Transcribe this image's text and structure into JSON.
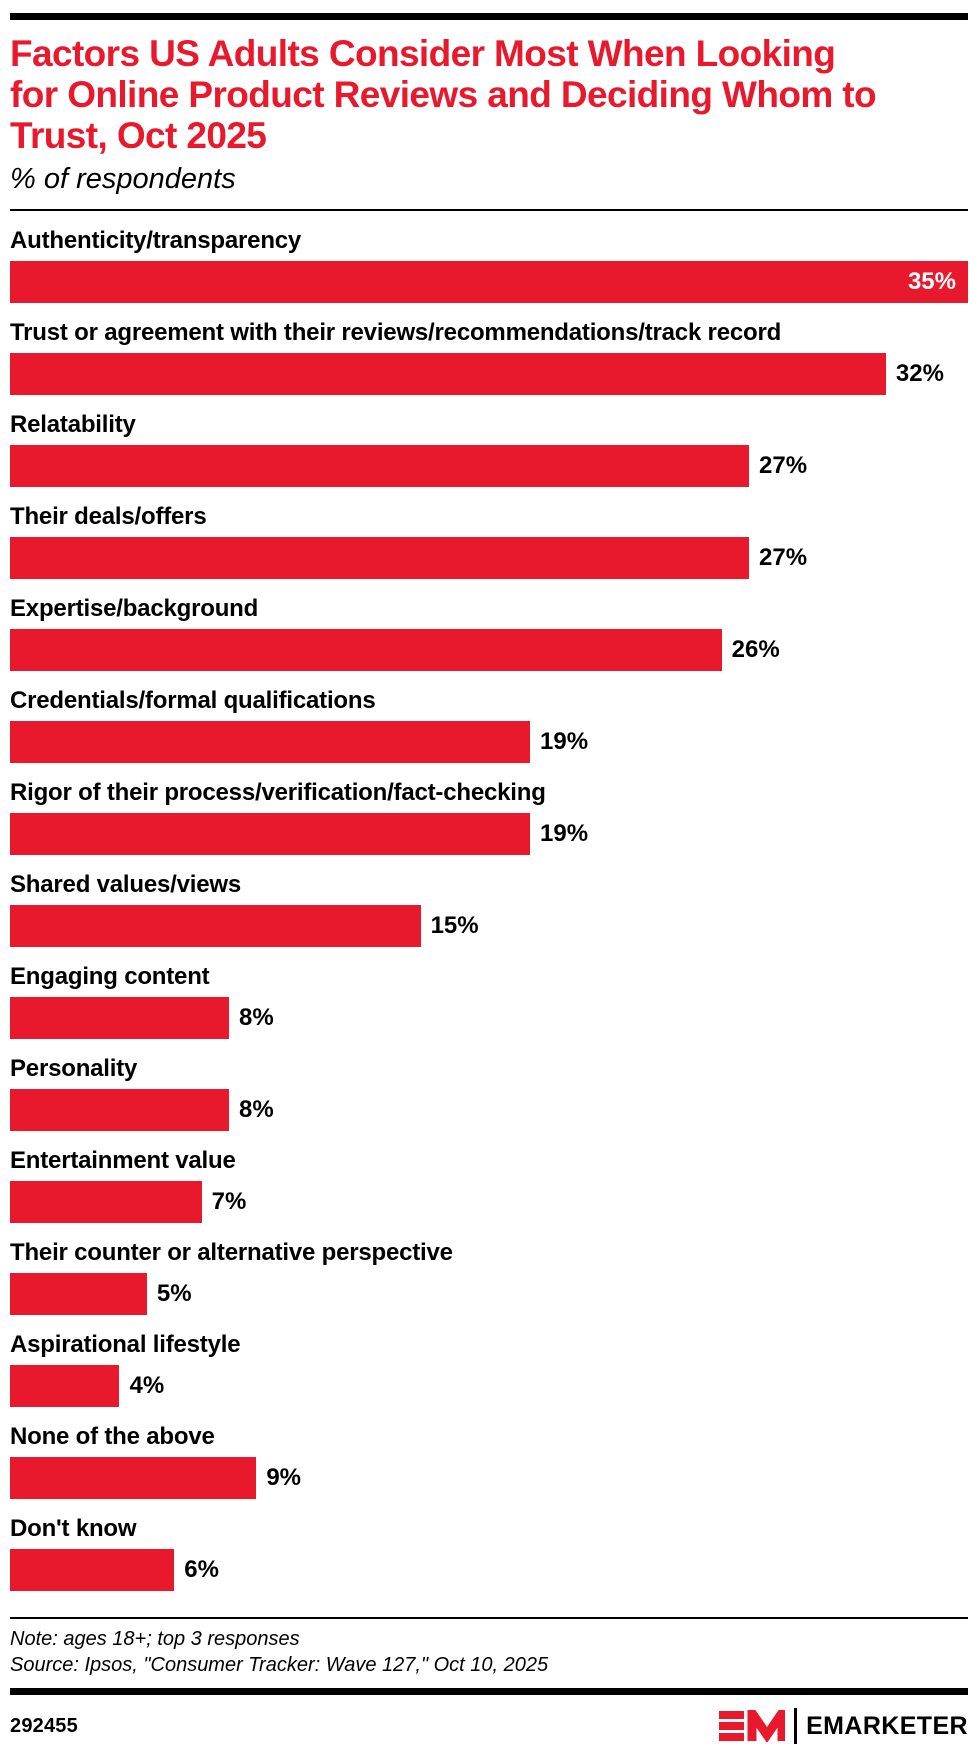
{
  "header": {
    "title": "Factors US Adults Consider Most When Looking for Online Product Reviews and Deciding Whom to Trust, Oct 2025",
    "title_lines": [
      "Factors US Adults Consider Most When Looking",
      "for Online Product Reviews and Deciding Whom to",
      "Trust, Oct 2025"
    ],
    "subtitle": "% of respondents"
  },
  "chart_data": {
    "type": "bar",
    "orientation": "horizontal",
    "title": "Factors US Adults Consider Most When Looking for Online Product Reviews and Deciding Whom to Trust, Oct 2025",
    "subtitle": "% of respondents",
    "unit": "%",
    "xlim": [
      0,
      35
    ],
    "grid": false,
    "legend": false,
    "bar_color": "#E8192C",
    "value_label_color_outside": "#000000",
    "value_label_color_inside": "#FFFFFF",
    "categories": [
      "Authenticity/transparency",
      "Trust or agreement with their reviews/recommendations/track record",
      "Relatability",
      "Their deals/offers",
      "Expertise/background",
      "Credentials/formal qualifications",
      "Rigor of their process/verification/fact-checking",
      "Shared values/views",
      "Engaging content",
      "Personality",
      "Entertainment value",
      "Their counter or alternative perspective",
      "Aspirational lifestyle",
      "None of the above",
      "Don't know"
    ],
    "values": [
      35,
      32,
      27,
      27,
      26,
      19,
      19,
      15,
      8,
      8,
      7,
      5,
      4,
      9,
      6
    ]
  },
  "footer": {
    "note": "Note: ages 18+; top 3 responses",
    "source": "Source: Ipsos, \"Consumer Tracker: Wave 127,\" Oct 10, 2025",
    "chart_id": "292455",
    "brand_wordmark": "EMARKETER"
  },
  "colors": {
    "accent_red": "#E8192C",
    "text_black": "#000000"
  }
}
